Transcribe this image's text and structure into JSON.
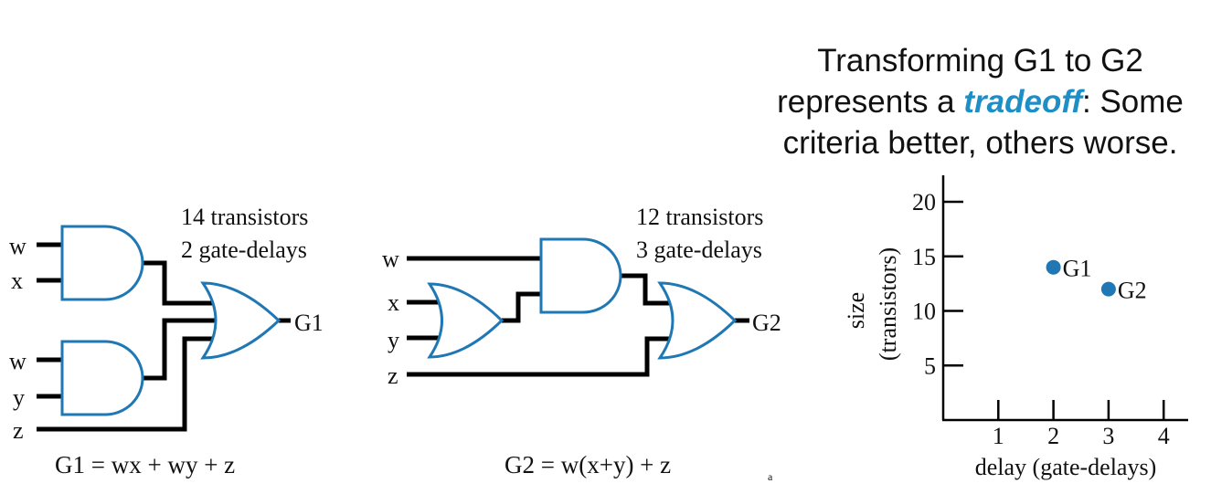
{
  "title": {
    "line1": "Transforming G1 to G2",
    "line2_pre": "represents a ",
    "line2_highlight": "tradeoff",
    "line2_post": ": Some",
    "line3": "criteria better, others worse."
  },
  "g1": {
    "inputs": [
      "w",
      "x",
      "w",
      "y",
      "z"
    ],
    "output": "G1",
    "stats": [
      "14 transistors",
      "2 gate-delays"
    ],
    "equation": "G1 = wx + wy + z"
  },
  "g2": {
    "inputs": [
      "w",
      "x",
      "y",
      "z"
    ],
    "output": "G2",
    "stats": [
      "12 transistors",
      "3 gate-delays"
    ],
    "equation": "G2 = w(x+y) + z"
  },
  "stray_mark": "a",
  "colors": {
    "accent": "#1e8fc6",
    "gate": "#1f77b4"
  },
  "chart_data": {
    "type": "scatter",
    "xlabel": "delay (gate-delays)",
    "ylabel_line1": "size",
    "ylabel_line2": "(transistors)",
    "x_ticks": [
      1,
      2,
      3,
      4
    ],
    "y_ticks": [
      5,
      10,
      15,
      20
    ],
    "xlim": [
      0,
      4.5
    ],
    "ylim": [
      0,
      20
    ],
    "points": [
      {
        "label": "G1",
        "x": 2,
        "y": 14
      },
      {
        "label": "G2",
        "x": 3,
        "y": 12
      }
    ]
  }
}
